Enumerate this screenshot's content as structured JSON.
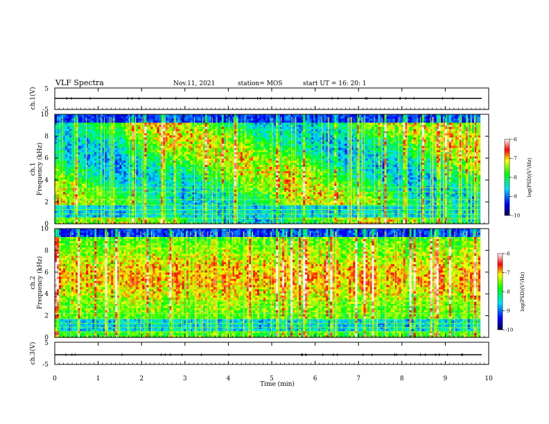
{
  "header": {
    "title": "VLF Spectra",
    "date": "Nov.11, 2021",
    "station": "station= MOS",
    "start": "start  UT =   16: 20: 1"
  },
  "panels": {
    "ch1v": {
      "ylabel": "ch.1(V)",
      "tick_top": "5",
      "tick_bottom": "-5"
    },
    "ch3v": {
      "ylabel": "ch.3(V)",
      "tick_top": "5",
      "tick_bottom": "-5"
    },
    "spec1": {
      "ylabel_channel": "ch.1",
      "ylabel": "Frequency (kHz)"
    },
    "spec2": {
      "ylabel_channel": "ch.2",
      "ylabel": "Frequency (kHz)"
    }
  },
  "colorbar": {
    "label": "log(PSD)(V²/Hz)",
    "ticks": [
      "-6",
      "-7",
      "-8",
      "-9",
      "-10"
    ],
    "values": [
      -6,
      -7,
      -8,
      -9,
      -10
    ]
  },
  "colors": {
    "low": "#000080",
    "mid": "#00e000",
    "high": "#ff0000",
    "line": "#000000"
  },
  "chart_data": {
    "type": "heatmap",
    "xlabel": "Time (min)",
    "xlim": [
      0,
      10
    ],
    "x_ticks": [
      "0",
      "1",
      "2",
      "3",
      "4",
      "5",
      "6",
      "7",
      "8",
      "9",
      "10"
    ],
    "freq_ylim": [
      0,
      10
    ],
    "freq_ticks": [
      "0",
      "2",
      "4",
      "6",
      "8",
      "10"
    ],
    "volt_ylim": [
      -5,
      5
    ],
    "zlim": [
      -10,
      -6
    ]
  }
}
